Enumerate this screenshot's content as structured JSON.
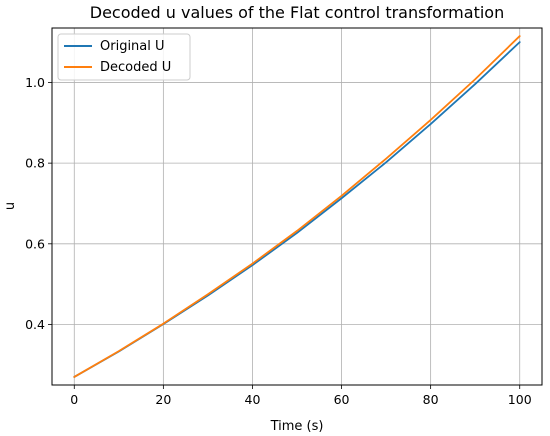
{
  "chart_data": {
    "type": "line",
    "title": "Decoded u values of the Flat control transformation",
    "xlabel": "Time (s)",
    "ylabel": "u",
    "xlim": [
      -5,
      105
    ],
    "ylim": [
      0.25,
      1.135
    ],
    "xticks": [
      0,
      20,
      40,
      60,
      80,
      100
    ],
    "yticks": [
      0.4,
      0.6,
      0.8,
      1.0
    ],
    "xtick_labels": [
      "0",
      "20",
      "40",
      "60",
      "80",
      "100"
    ],
    "ytick_labels": [
      "0.4",
      "0.6",
      "0.8",
      "1.0"
    ],
    "grid": true,
    "legend_position": "upper-left",
    "x": [
      0,
      10,
      20,
      30,
      40,
      50,
      60,
      70,
      80,
      90,
      100
    ],
    "series": [
      {
        "name": "Original U",
        "color": "#1f77b4",
        "values": [
          0.27,
          0.333,
          0.401,
          0.472,
          0.547,
          0.627,
          0.713,
          0.802,
          0.897,
          0.996,
          1.1
        ]
      },
      {
        "name": "Decoded U",
        "color": "#ff7f0e",
        "values": [
          0.27,
          0.334,
          0.402,
          0.475,
          0.551,
          0.632,
          0.719,
          0.811,
          0.907,
          1.008,
          1.115
        ]
      }
    ]
  }
}
